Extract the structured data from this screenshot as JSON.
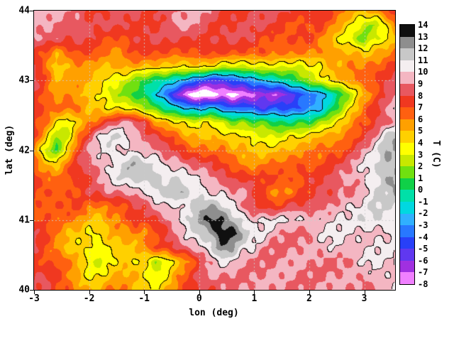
{
  "figure": {
    "xlabel": "lon (deg)",
    "ylabel": "lat (deg)",
    "x_tick_labels": [
      "-3",
      "-2",
      "-1",
      "0",
      "1",
      "2",
      "3"
    ],
    "x_tick_values": [
      -3,
      -2,
      -1,
      0,
      1,
      2,
      3
    ],
    "y_tick_labels": [
      "44",
      "43",
      "42",
      "41",
      "40"
    ],
    "y_tick_values": [
      44,
      43,
      42,
      41,
      40
    ],
    "colorbar": {
      "label": "T (C)",
      "tick_labels": [
        "14",
        "13",
        "12",
        "11",
        "10",
        "9",
        "8",
        "7",
        "6",
        "5",
        "4",
        "3",
        "2",
        "1",
        "0",
        "-1",
        "-2",
        "-3",
        "-4",
        "-5",
        "-6",
        "-7",
        "-8"
      ],
      "tick_values": [
        14,
        13,
        12,
        11,
        10,
        9,
        8,
        7,
        6,
        5,
        4,
        3,
        2,
        1,
        0,
        -1,
        -2,
        -3,
        -4,
        -5,
        -6,
        -7,
        -8
      ]
    }
  },
  "chart_data": {
    "type": "heatmap",
    "title": "",
    "xlabel": "lon (deg)",
    "ylabel": "lat (deg)",
    "colorbar_label": "T (C)",
    "x_range": [
      -3,
      3.56
    ],
    "y_range": [
      40,
      44
    ],
    "grid_on": true,
    "gridline_values": {
      "lon": [
        -2,
        -1,
        0,
        1,
        2,
        3
      ],
      "lat": [
        41,
        42,
        43
      ]
    },
    "levels": {
      "min": -8,
      "max": 14,
      "step": 1
    },
    "palette": [
      "#f080ff",
      "#a030e0",
      "#6038f0",
      "#2840f8",
      "#2878ff",
      "#30b0ff",
      "#00d8e0",
      "#00e0a8",
      "#10d048",
      "#70e010",
      "#c8e800",
      "#ffff00",
      "#ffd000",
      "#ffa000",
      "#ff6010",
      "#f03820",
      "#e85860",
      "#f4b6c2",
      "#f4eef0",
      "#c8c8c8",
      "#8e8e8e",
      "#101010"
    ],
    "below_min_color": "#ffffff",
    "contour_levels": [
      -2,
      4,
      10
    ],
    "grid": {
      "comment": "Temperature (C) on a lon/lat grid; rows ordered north (lat 44.0) to south (lat 40.0); cols west (lon -3.0) to east (lon 3.6)",
      "lon_start": -3.0,
      "lon_step": 0.2,
      "nlon": 34,
      "lat_start": 44.0,
      "lat_step": -0.2,
      "nlat": 21,
      "values": [
        [
          9,
          9,
          9,
          9,
          9,
          8,
          8,
          8,
          8,
          8,
          8,
          8,
          9,
          9,
          9,
          9,
          9,
          8,
          8,
          8,
          8,
          8,
          8,
          8,
          8,
          8,
          8,
          7,
          6,
          5,
          5,
          6,
          7,
          8
        ],
        [
          9,
          9,
          9,
          9,
          9,
          8,
          8,
          8,
          8,
          8,
          8,
          8,
          8,
          9,
          9,
          9,
          8,
          8,
          8,
          8,
          8,
          8,
          8,
          7,
          7,
          7,
          7,
          6,
          5,
          4,
          3,
          2,
          4,
          6
        ],
        [
          9,
          9,
          9,
          8,
          8,
          8,
          7,
          7,
          7,
          8,
          8,
          8,
          8,
          8,
          8,
          8,
          8,
          8,
          8,
          8,
          8,
          7,
          7,
          7,
          7,
          7,
          6,
          5,
          4,
          3,
          1,
          3,
          3,
          5
        ],
        [
          8,
          7,
          5,
          6,
          7,
          7,
          7,
          6,
          6,
          7,
          7,
          7,
          7,
          7,
          7,
          7,
          7,
          7,
          7,
          7,
          7,
          7,
          6,
          6,
          6,
          6,
          6,
          6,
          5,
          5,
          4,
          5,
          6,
          7
        ],
        [
          8,
          6,
          4,
          5,
          6,
          6,
          5,
          5,
          5,
          5,
          5,
          5,
          5,
          4,
          4,
          4,
          4,
          3,
          3,
          3,
          3,
          3,
          3,
          3,
          3,
          4,
          4,
          5,
          5,
          6,
          6,
          7,
          7,
          8
        ],
        [
          8,
          7,
          5,
          6,
          6,
          5,
          4,
          3,
          3,
          2,
          1,
          0,
          -1,
          -2,
          -3,
          -4,
          -5,
          -5,
          -4,
          -4,
          -3,
          -2,
          -1,
          0,
          1,
          2,
          3,
          4,
          5,
          6,
          7,
          7,
          8,
          8
        ],
        [
          8,
          7,
          6,
          6,
          5,
          4,
          4,
          3,
          2,
          1,
          0,
          -2,
          -4,
          -6,
          -8,
          -9,
          -9,
          -8,
          -9,
          -8,
          -7,
          -6,
          -7,
          -6,
          -5,
          -4,
          -3,
          -1,
          1,
          3,
          5,
          6,
          8,
          9
        ],
        [
          8,
          7,
          6,
          6,
          6,
          5,
          5,
          4,
          4,
          3,
          2,
          1,
          0,
          -1,
          -2,
          -3,
          -2,
          -3,
          -4,
          -3,
          -4,
          -5,
          -4,
          -5,
          -4,
          -3,
          -2,
          0,
          2,
          4,
          6,
          8,
          9,
          11
        ],
        [
          7,
          6,
          4,
          3,
          5,
          6,
          7,
          8,
          9,
          9,
          8,
          6,
          5,
          4,
          3,
          3,
          4,
          3,
          2,
          2,
          1,
          1,
          0,
          0,
          1,
          1,
          2,
          3,
          4,
          6,
          7,
          8,
          9,
          9
        ],
        [
          7,
          5,
          2,
          3,
          6,
          8,
          10,
          11,
          11,
          10,
          9,
          8,
          7,
          6,
          5,
          5,
          5,
          5,
          4,
          4,
          3,
          3,
          3,
          4,
          4,
          4,
          5,
          5,
          6,
          7,
          8,
          9,
          11,
          12
        ],
        [
          6,
          3,
          1,
          4,
          7,
          9,
          10,
          11,
          10,
          10,
          9,
          9,
          8,
          8,
          7,
          7,
          6,
          6,
          5,
          5,
          5,
          5,
          5,
          5,
          5,
          6,
          6,
          7,
          7,
          8,
          9,
          10,
          12,
          12
        ],
        [
          7,
          5,
          4,
          6,
          8,
          9,
          10,
          10,
          11,
          12,
          11,
          11,
          10,
          10,
          9,
          8,
          8,
          7,
          7,
          6,
          6,
          6,
          6,
          6,
          7,
          7,
          7,
          8,
          8,
          9,
          10,
          11,
          12,
          12
        ],
        [
          7,
          6,
          6,
          7,
          8,
          8,
          9,
          10,
          11,
          11,
          12,
          12,
          11,
          11,
          10,
          10,
          9,
          9,
          8,
          8,
          7,
          7,
          7,
          7,
          7,
          8,
          8,
          8,
          9,
          9,
          10,
          11,
          12,
          12
        ],
        [
          7,
          7,
          7,
          7,
          7,
          8,
          8,
          9,
          9,
          10,
          10,
          11,
          11,
          12,
          11,
          11,
          10,
          10,
          9,
          9,
          8,
          7,
          6,
          6,
          7,
          7,
          8,
          8,
          9,
          9,
          10,
          11,
          11,
          12
        ],
        [
          7,
          7,
          7,
          7,
          7,
          6,
          6,
          7,
          7,
          8,
          8,
          9,
          10,
          10,
          11,
          12,
          12,
          11,
          10,
          9,
          8,
          8,
          7,
          8,
          8,
          8,
          9,
          9,
          10,
          10,
          10,
          11,
          11,
          11
        ],
        [
          7,
          7,
          6,
          6,
          6,
          5,
          5,
          6,
          6,
          7,
          7,
          8,
          9,
          10,
          11,
          12,
          13,
          13,
          12,
          11,
          10,
          10,
          10,
          10,
          10,
          10,
          10,
          10,
          10,
          10,
          11,
          11,
          11,
          11
        ],
        [
          8,
          7,
          6,
          5,
          5,
          4,
          4,
          5,
          5,
          6,
          6,
          7,
          8,
          9,
          10,
          11,
          12,
          14,
          14,
          12,
          10,
          10,
          9,
          9,
          9,
          9,
          10,
          10,
          10,
          10,
          10,
          10,
          10,
          10
        ],
        [
          8,
          7,
          6,
          5,
          4,
          4,
          3,
          4,
          5,
          5,
          6,
          7,
          7,
          8,
          9,
          10,
          11,
          13,
          12,
          10,
          10,
          9,
          9,
          9,
          9,
          9,
          9,
          10,
          10,
          10,
          10,
          10,
          10,
          10
        ],
        [
          8,
          7,
          7,
          6,
          5,
          3,
          3,
          4,
          5,
          4,
          4,
          2,
          3,
          5,
          6,
          8,
          9,
          10,
          10,
          9,
          9,
          9,
          9,
          9,
          9,
          9,
          9,
          9,
          9,
          9,
          10,
          10,
          10,
          10
        ],
        [
          8,
          8,
          7,
          6,
          5,
          4,
          4,
          5,
          5,
          5,
          4,
          3,
          4,
          6,
          7,
          8,
          9,
          9,
          9,
          9,
          9,
          9,
          9,
          9,
          9,
          9,
          9,
          9,
          9,
          9,
          9,
          10,
          10,
          10
        ],
        [
          8,
          8,
          7,
          7,
          6,
          5,
          5,
          6,
          6,
          5,
          5,
          4,
          5,
          6,
          7,
          8,
          8,
          9,
          9,
          9,
          9,
          9,
          9,
          9,
          9,
          9,
          9,
          9,
          9,
          9,
          9,
          9,
          10,
          10
        ]
      ]
    }
  }
}
